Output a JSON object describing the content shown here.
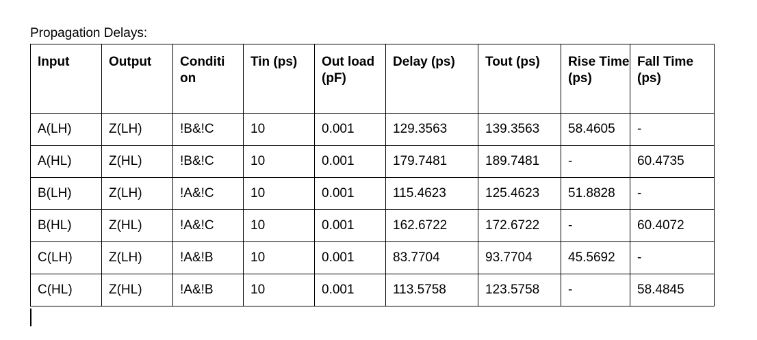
{
  "document": {
    "caption": "Propagation Delays:"
  },
  "table": {
    "headers": [
      "Input",
      "Output",
      "Conditi on",
      "Tin (ps)",
      "Out load (pF)",
      "Delay (ps)",
      "Tout (ps)",
      "Rise Time (ps)",
      "Fall Time (ps)"
    ],
    "rows": [
      [
        "A(LH)",
        "Z(LH)",
        "!B&!C",
        "10",
        "0.001",
        "129.3563",
        "139.3563",
        "58.4605",
        "-"
      ],
      [
        "A(HL)",
        "Z(HL)",
        "!B&!C",
        "10",
        "0.001",
        "179.7481",
        "189.7481",
        "-",
        "60.4735"
      ],
      [
        "B(LH)",
        "Z(LH)",
        "!A&!C",
        "10",
        "0.001",
        "115.4623",
        "125.4623",
        "51.8828",
        "-"
      ],
      [
        "B(HL)",
        "Z(HL)",
        "!A&!C",
        "10",
        "0.001",
        "162.6722",
        "172.6722",
        "-",
        "60.4072"
      ],
      [
        "C(LH)",
        "Z(LH)",
        "!A&!B",
        "10",
        "0.001",
        "83.7704",
        "93.7704",
        "45.5692",
        "-"
      ],
      [
        "C(HL)",
        "Z(HL)",
        "!A&!B",
        "10",
        "0.001",
        "113.5758",
        "123.5758",
        "-",
        "58.4845"
      ]
    ]
  }
}
